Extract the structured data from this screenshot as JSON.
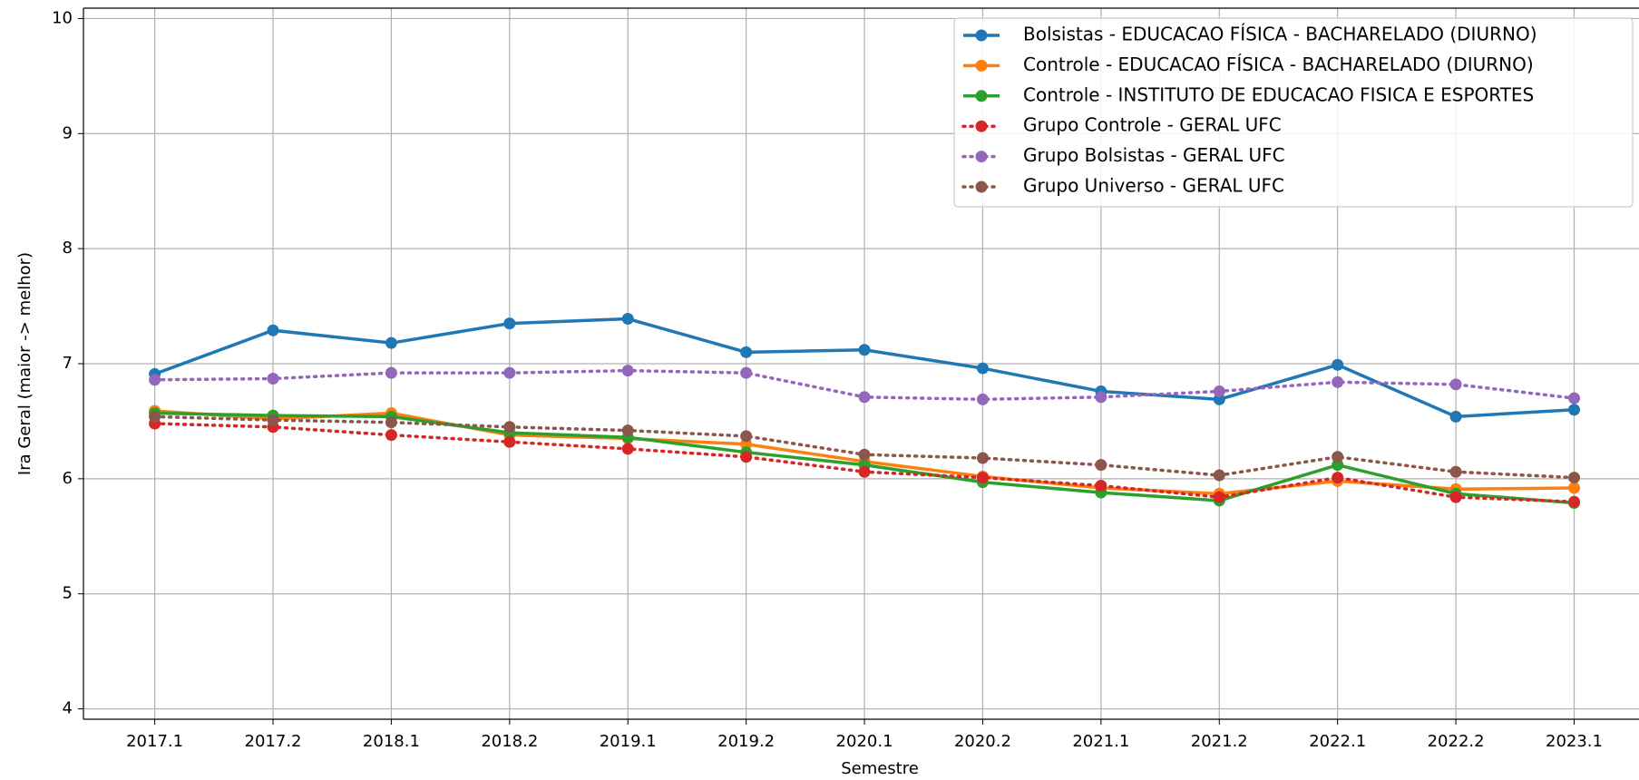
{
  "chart_data": {
    "type": "line",
    "x_label": "Semestre",
    "y_label": "Ira Geral (maior -> melhor)",
    "categories": [
      "2017.1",
      "2017.2",
      "2018.1",
      "2018.2",
      "2019.1",
      "2019.2",
      "2020.1",
      "2020.2",
      "2021.1",
      "2021.2",
      "2022.1",
      "2022.2",
      "2023.1"
    ],
    "ylim": [
      3.91,
      10.09
    ],
    "yticks": [
      4,
      5,
      6,
      7,
      8,
      9,
      10
    ],
    "grid": true,
    "legend": "upper right",
    "series": [
      {
        "name": "Bolsistas - EDUCACAO FÍSICA - BACHARELADO (DIURNO)",
        "color": "#1f77b4",
        "linestyle": "solid",
        "values": [
          6.91,
          7.29,
          7.18,
          7.35,
          7.39,
          7.1,
          7.12,
          6.96,
          6.76,
          6.69,
          6.99,
          6.54,
          6.6
        ]
      },
      {
        "name": "Controle - EDUCACAO FÍSICA - BACHARELADO (DIURNO)",
        "color": "#ff7f0e",
        "linestyle": "solid",
        "values": [
          6.59,
          6.52,
          6.57,
          6.38,
          6.35,
          6.3,
          6.15,
          6.02,
          5.92,
          5.87,
          5.98,
          5.91,
          5.92
        ]
      },
      {
        "name": "Controle - INSTITUTO DE EDUCACAO FISICA E ESPORTES",
        "color": "#2ca02c",
        "linestyle": "solid",
        "values": [
          6.57,
          6.55,
          6.54,
          6.4,
          6.36,
          6.23,
          6.12,
          5.97,
          5.88,
          5.81,
          6.12,
          5.87,
          5.79
        ]
      },
      {
        "name": "Grupo Controle - GERAL UFC",
        "color": "#d62728",
        "linestyle": "dotted",
        "values": [
          6.48,
          6.45,
          6.38,
          6.32,
          6.26,
          6.19,
          6.06,
          6.01,
          5.94,
          5.84,
          6.01,
          5.84,
          5.8
        ]
      },
      {
        "name": "Grupo Bolsistas - GERAL UFC",
        "color": "#9467bd",
        "linestyle": "dotted",
        "values": [
          6.86,
          6.87,
          6.92,
          6.92,
          6.94,
          6.92,
          6.71,
          6.69,
          6.71,
          6.76,
          6.84,
          6.82,
          6.7
        ]
      },
      {
        "name": "Grupo Universo - GERAL UFC",
        "color": "#8c564b",
        "linestyle": "dotted",
        "values": [
          6.54,
          6.51,
          6.49,
          6.45,
          6.42,
          6.37,
          6.21,
          6.18,
          6.12,
          6.03,
          6.19,
          6.06,
          6.01
        ]
      }
    ]
  }
}
